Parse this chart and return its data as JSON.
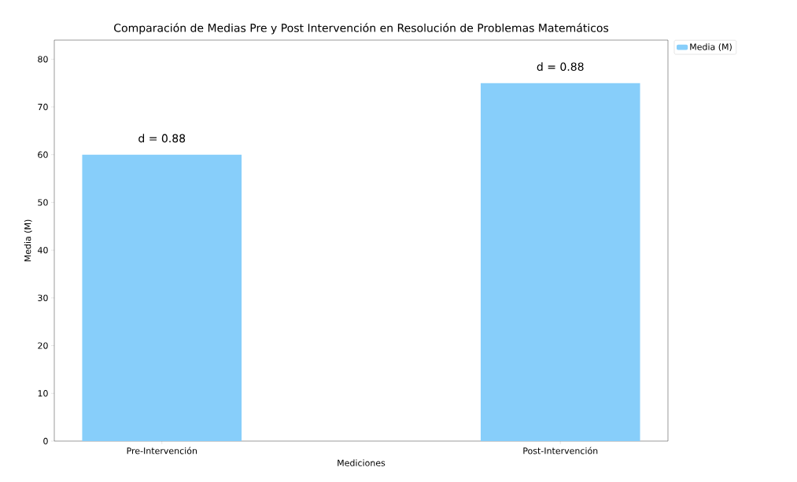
{
  "chart_data": {
    "type": "bar",
    "title": "Comparación de Medias Pre y Post Intervención en Resolución de Problemas Matemáticos",
    "xlabel": "Mediciones",
    "ylabel": "Media (M)",
    "categories": [
      "Pre-Intervención",
      "Post-Intervención"
    ],
    "series": [
      {
        "name": "Media (M)",
        "color": "#87cefa",
        "values": [
          60,
          75
        ]
      }
    ],
    "ylim": [
      0,
      84
    ],
    "yticks": [
      0,
      10,
      20,
      30,
      40,
      50,
      60,
      70,
      80
    ],
    "annotations": [
      "d = 0.88",
      "d = 0.88"
    ],
    "grid": false,
    "legend": "top right"
  }
}
